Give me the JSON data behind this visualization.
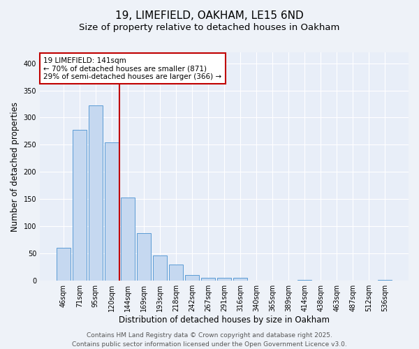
{
  "title1": "19, LIMEFIELD, OAKHAM, LE15 6ND",
  "title2": "Size of property relative to detached houses in Oakham",
  "xlabel": "Distribution of detached houses by size in Oakham",
  "ylabel": "Number of detached properties",
  "categories": [
    "46sqm",
    "71sqm",
    "95sqm",
    "120sqm",
    "144sqm",
    "169sqm",
    "193sqm",
    "218sqm",
    "242sqm",
    "267sqm",
    "291sqm",
    "316sqm",
    "340sqm",
    "365sqm",
    "389sqm",
    "414sqm",
    "438sqm",
    "463sqm",
    "487sqm",
    "512sqm",
    "536sqm"
  ],
  "values": [
    60,
    277,
    322,
    255,
    153,
    88,
    46,
    30,
    10,
    6,
    5,
    6,
    0,
    0,
    0,
    2,
    0,
    0,
    0,
    0,
    2
  ],
  "bar_color": "#c5d8f0",
  "bar_edge_color": "#5b9bd5",
  "vline_x": 3.5,
  "vline_color": "#c00000",
  "annotation_text": "19 LIMEFIELD: 141sqm\n← 70% of detached houses are smaller (871)\n29% of semi-detached houses are larger (366) →",
  "annotation_box_color": "white",
  "annotation_box_edge_color": "#c00000",
  "ylim": [
    0,
    420
  ],
  "yticks": [
    0,
    50,
    100,
    150,
    200,
    250,
    300,
    350,
    400
  ],
  "footer1": "Contains HM Land Registry data © Crown copyright and database right 2025.",
  "footer2": "Contains public sector information licensed under the Open Government Licence v3.0.",
  "bg_color": "#eef2f8",
  "plot_bg_color": "#e8eef8",
  "grid_color": "white",
  "title_fontsize": 11,
  "subtitle_fontsize": 9.5,
  "tick_fontsize": 7,
  "label_fontsize": 8.5,
  "footer_fontsize": 6.5,
  "annot_fontsize": 7.5
}
